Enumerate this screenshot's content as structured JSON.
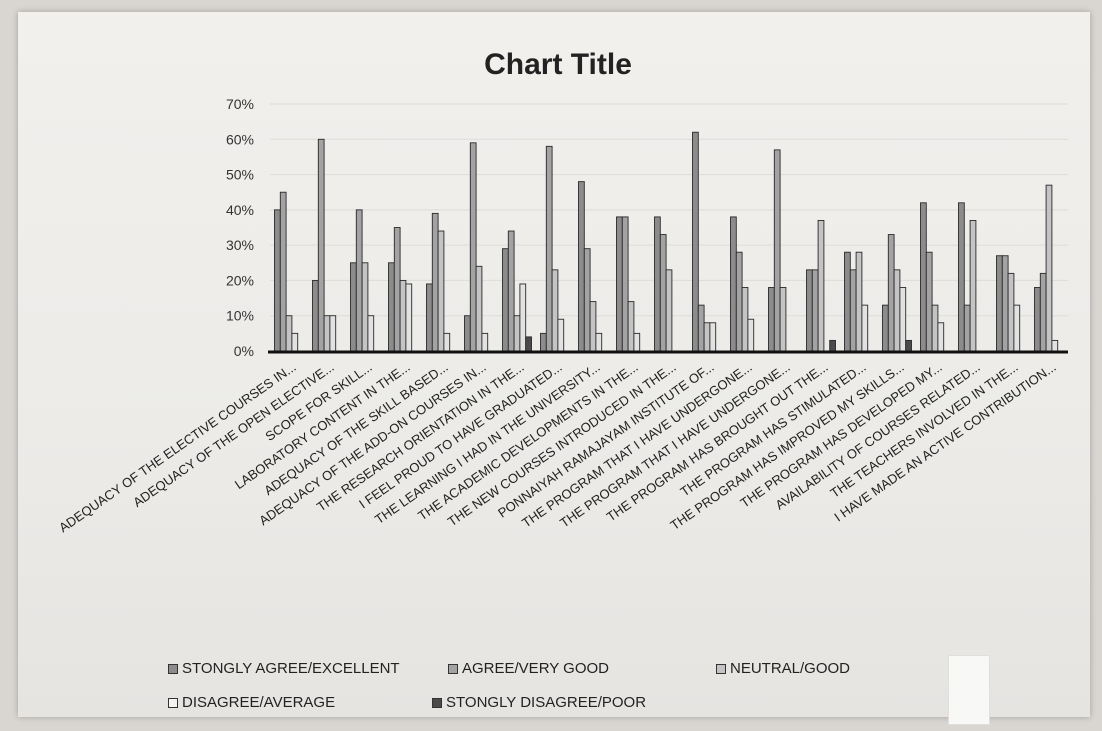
{
  "chart_data": {
    "type": "bar",
    "title": "Chart Title",
    "xlabel": "",
    "ylabel": "",
    "ylim": [
      0,
      0.7
    ],
    "yticks": [
      "70%",
      "60%",
      "50%",
      "40%",
      "30%",
      "20%",
      "10%",
      "0%"
    ],
    "grid": true,
    "legend_position": "bottom",
    "categories": [
      "ADEQUACY OF THE ELECTIVE COURSES IN...",
      "ADEQUACY OF THE OPEN ELECTIVE...",
      "SCOPE FOR SKILL...",
      "LABORATORY CONTENT IN THE...",
      "ADEQUACY OF THE SKILL BASED...",
      "ADEQUACY OF THE ADD-ON COURSES IN...",
      "THE RESEARCH ORIENTATION IN THE...",
      "I FEEL PROUD TO HAVE GRADUATED...",
      "THE LEARNING I HAD IN THE UNIVERSITY...",
      "THE ACADEMIC DEVELOPMENTS IN THE...",
      "THE NEW COURSES INTRODUCED IN THE...",
      "PONNAIYAH RAMAJAYAM INSTITUTE OF...",
      "THE PROGRAM THAT I HAVE UNDERGONE...",
      "THE PROGRAM THAT I HAVE UNDERGONE...",
      "THE PROGRAM HAS BROUGHT OUT THE...",
      "THE PROGRAM HAS STIMULATED...",
      "THE PROGRAM HAS IMPROVED MY SKILLS...",
      "THE PROGRAM HAS DEVELOPED MY...",
      "AVAILABILITY OF COURSES RELATED...",
      "THE TEACHERS INVOLVED IN THE...",
      "I HAVE MADE AN ACTIVE CONTRIBUTION..."
    ],
    "series": [
      {
        "name": "STONGLY AGREE/EXCELLENT",
        "color": "#8c8c8c",
        "values": [
          0.4,
          0.2,
          0.25,
          0.25,
          0.19,
          0.1,
          0.29,
          0.05,
          0.48,
          0.38,
          0.38,
          0.62,
          0.38,
          0.18,
          0.23,
          0.28,
          0.13,
          0.42,
          0.42,
          0.27,
          0.18
        ]
      },
      {
        "name": "AGREE/VERY GOOD",
        "color": "#a3a3a3",
        "values": [
          0.45,
          0.6,
          0.4,
          0.35,
          0.39,
          0.59,
          0.34,
          0.58,
          0.29,
          0.38,
          0.33,
          0.13,
          0.28,
          0.57,
          0.23,
          0.23,
          0.33,
          0.28,
          0.13,
          0.27,
          0.22
        ]
      },
      {
        "name": "NEUTRAL/GOOD",
        "color": "#c4c4c4",
        "values": [
          0.1,
          0.1,
          0.25,
          0.2,
          0.34,
          0.24,
          0.1,
          0.23,
          0.14,
          0.14,
          0.23,
          0.08,
          0.18,
          0.18,
          0.37,
          0.28,
          0.23,
          0.13,
          0.37,
          0.22,
          0.47
        ]
      },
      {
        "name": "DISAGREE/AVERAGE",
        "color": "#e2e2e2",
        "values": [
          0.05,
          0.1,
          0.1,
          0.19,
          0.05,
          0.05,
          0.19,
          0.09,
          0.05,
          0.05,
          0.0,
          0.08,
          0.09,
          0.0,
          0.0,
          0.13,
          0.18,
          0.08,
          0.0,
          0.13,
          0.03
        ]
      },
      {
        "name": "STONGLY DISAGREE/POOR",
        "color": "#4a4a4a",
        "values": [
          0,
          0,
          0,
          0,
          0,
          0,
          0.04,
          0,
          0,
          0,
          0,
          0,
          0,
          0,
          0.03,
          0,
          0.03,
          0,
          0,
          0,
          0
        ]
      }
    ]
  }
}
